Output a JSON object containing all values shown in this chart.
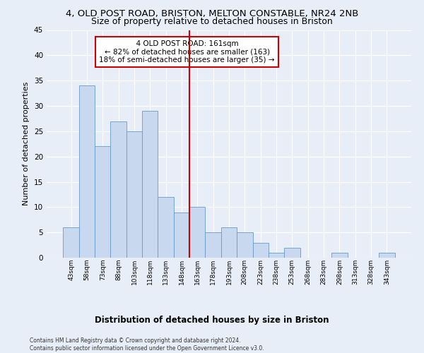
{
  "title1": "4, OLD POST ROAD, BRISTON, MELTON CONSTABLE, NR24 2NB",
  "title2": "Size of property relative to detached houses in Briston",
  "xlabel": "Distribution of detached houses by size in Briston",
  "ylabel": "Number of detached properties",
  "categories": [
    "43sqm",
    "58sqm",
    "73sqm",
    "88sqm",
    "103sqm",
    "118sqm",
    "133sqm",
    "148sqm",
    "163sqm",
    "178sqm",
    "193sqm",
    "208sqm",
    "223sqm",
    "238sqm",
    "253sqm",
    "268sqm",
    "283sqm",
    "298sqm",
    "313sqm",
    "328sqm",
    "343sqm"
  ],
  "values": [
    6,
    34,
    22,
    27,
    25,
    29,
    12,
    9,
    10,
    5,
    6,
    5,
    3,
    1,
    2,
    0,
    0,
    1,
    0,
    0,
    1
  ],
  "bar_color": "#c8d9ef",
  "bar_edge_color": "#6699cc",
  "vline_color": "#cc0000",
  "annotation_text": "  4 OLD POST ROAD: 161sqm  \n← 82% of detached houses are smaller (163)\n18% of semi-detached houses are larger (35) →",
  "annotation_box_color": "#ffffff",
  "annotation_box_edge_color": "#cc0000",
  "ylim": [
    0,
    45
  ],
  "yticks": [
    0,
    5,
    10,
    15,
    20,
    25,
    30,
    35,
    40,
    45
  ],
  "bg_color": "#e8eef8",
  "footer": "Contains HM Land Registry data © Crown copyright and database right 2024.\nContains public sector information licensed under the Open Government Licence v3.0.",
  "title1_fontsize": 9.5,
  "title2_fontsize": 9,
  "xlabel_fontsize": 8.5,
  "ylabel_fontsize": 8
}
